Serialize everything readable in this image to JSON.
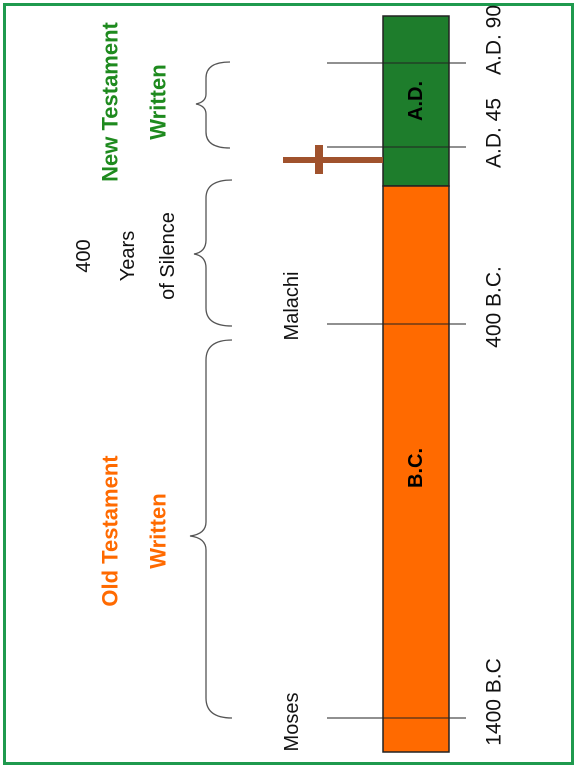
{
  "timeline": {
    "bar_labels": {
      "ad": "A.D.",
      "bc": "B.C."
    },
    "dates": {
      "ad90": "A.D. 90",
      "ad45": "A.D. 45",
      "bc400": "400 B.C.",
      "bc1400": "1400 B.C"
    },
    "events": {
      "malachi": "Malachi",
      "moses": "Moses"
    },
    "periods": {
      "new_testament": [
        "New Testament",
        "Written"
      ],
      "silence": [
        "400",
        "Years",
        "of Silence"
      ],
      "old_testament": [
        "Old Testament",
        "Written"
      ]
    },
    "colors": {
      "ad_segment": "#1e7d2c",
      "bc_segment": "#ff6a00",
      "new_testament_text": "#1e8a1e",
      "old_testament_text": "#ff6a00",
      "cross": "#a0522d",
      "frame": "#1f9a4e"
    }
  }
}
